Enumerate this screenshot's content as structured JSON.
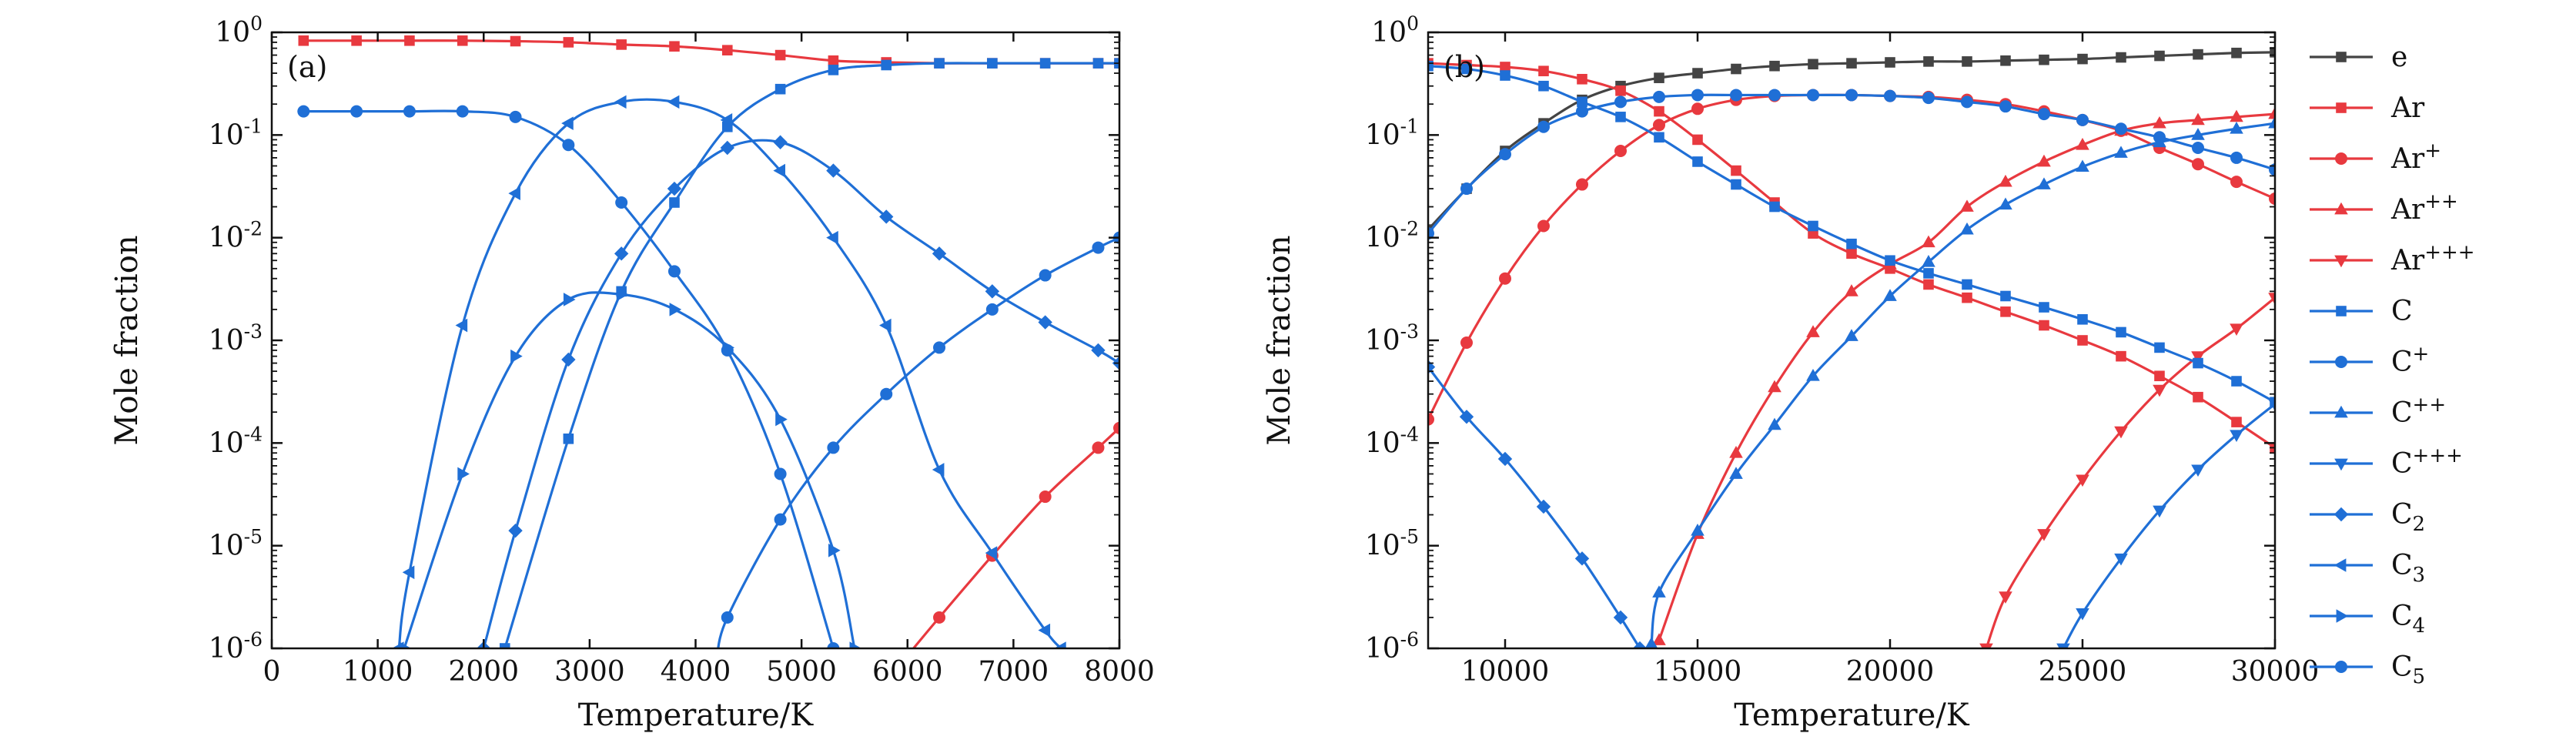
{
  "figure": {
    "ylabel": "Mole fraction",
    "xlabel": "Temperature/K"
  },
  "legend": [
    {
      "key": "e",
      "label": "e",
      "color": "#444444",
      "marker": "square"
    },
    {
      "key": "Ar",
      "label": "Ar",
      "color": "#e8393f",
      "marker": "square"
    },
    {
      "key": "Ar+",
      "label": "Ar+",
      "color": "#e8393f",
      "marker": "circle"
    },
    {
      "key": "Ar++",
      "label": "Ar++",
      "color": "#e8393f",
      "marker": "triangle-up"
    },
    {
      "key": "Ar+++",
      "label": "Ar+++",
      "color": "#e8393f",
      "marker": "triangle-down"
    },
    {
      "key": "C",
      "label": "C",
      "color": "#1f6fd6",
      "marker": "square"
    },
    {
      "key": "C+",
      "label": "C+",
      "color": "#1f6fd6",
      "marker": "circle"
    },
    {
      "key": "C++",
      "label": "C++",
      "color": "#1f6fd6",
      "marker": "triangle-up"
    },
    {
      "key": "C+++",
      "label": "C+++",
      "color": "#1f6fd6",
      "marker": "triangle-down"
    },
    {
      "key": "C2",
      "label": "C2",
      "color": "#1f6fd6",
      "marker": "diamond"
    },
    {
      "key": "C3",
      "label": "C3",
      "color": "#1f6fd6",
      "marker": "triangle-left"
    },
    {
      "key": "C4",
      "label": "C4",
      "color": "#1f6fd6",
      "marker": "triangle-right"
    },
    {
      "key": "C5",
      "label": "C5",
      "color": "#1f6fd6",
      "marker": "circle"
    }
  ],
  "chart_data": [
    {
      "type": "line",
      "panel_label": "(a)",
      "xlabel": "Temperature/K",
      "ylabel": "Mole fraction",
      "yscale": "log",
      "xlim": [
        0,
        8000
      ],
      "ylim": [
        1e-06,
        1
      ],
      "xticks": [
        0,
        1000,
        2000,
        3000,
        4000,
        5000,
        6000,
        7000,
        8000
      ],
      "series": [
        {
          "name": "Ar",
          "x": [
            300,
            800,
            1300,
            1800,
            2300,
            2800,
            3300,
            3800,
            4300,
            4800,
            5300,
            5800,
            6300,
            6800,
            7300,
            7800,
            8000
          ],
          "y": [
            0.83,
            0.83,
            0.83,
            0.83,
            0.82,
            0.8,
            0.76,
            0.73,
            0.67,
            0.6,
            0.53,
            0.51,
            0.5,
            0.5,
            0.5,
            0.5,
            0.5
          ]
        },
        {
          "name": "Ar+",
          "x": [
            6000,
            6300,
            6800,
            7300,
            7800,
            8000
          ],
          "y": [
            8.5e-07,
            2e-06,
            8e-06,
            3e-05,
            9e-05,
            0.00014
          ]
        },
        {
          "name": "C",
          "x": [
            2200,
            2800,
            3300,
            3800,
            4300,
            4800,
            5300,
            5800,
            6300,
            6800,
            7300,
            7800,
            8000
          ],
          "y": [
            1e-06,
            0.00011,
            0.003,
            0.022,
            0.12,
            0.28,
            0.43,
            0.48,
            0.5,
            0.5,
            0.5,
            0.5,
            0.5
          ]
        },
        {
          "name": "C+",
          "x": [
            4200,
            4300,
            4800,
            5300,
            5800,
            6300,
            6800,
            7300,
            7800,
            8000
          ],
          "y": [
            8e-07,
            2e-06,
            1.8e-05,
            9e-05,
            0.0003,
            0.00085,
            0.002,
            0.0043,
            0.008,
            0.01
          ]
        },
        {
          "name": "C2",
          "x": [
            2000,
            2300,
            2800,
            3300,
            3800,
            4300,
            4800,
            5300,
            5800,
            6300,
            6800,
            7300,
            7800,
            8000
          ],
          "y": [
            1e-06,
            1.4e-05,
            0.00065,
            0.007,
            0.03,
            0.075,
            0.085,
            0.045,
            0.016,
            0.007,
            0.003,
            0.0015,
            0.0008,
            0.0006
          ]
        },
        {
          "name": "C3",
          "x": [
            1200,
            1300,
            1800,
            2300,
            2800,
            3300,
            3800,
            4300,
            4800,
            5300,
            5800,
            6300,
            6800,
            7300,
            7450
          ],
          "y": [
            1e-06,
            5.5e-06,
            0.0014,
            0.027,
            0.13,
            0.21,
            0.21,
            0.14,
            0.045,
            0.01,
            0.0014,
            5.5e-05,
            8.5e-06,
            1.5e-06,
            1e-06
          ]
        },
        {
          "name": "C4",
          "x": [
            1250,
            1800,
            2300,
            2800,
            3300,
            3800,
            4300,
            4800,
            5300,
            5500
          ],
          "y": [
            1e-06,
            5e-05,
            0.0007,
            0.0025,
            0.0028,
            0.002,
            0.00085,
            0.00017,
            9e-06,
            1e-06
          ]
        },
        {
          "name": "C5",
          "x": [
            300,
            800,
            1300,
            1800,
            2300,
            2800,
            3300,
            3800,
            4300,
            4800,
            5300
          ],
          "y": [
            0.17,
            0.17,
            0.17,
            0.17,
            0.15,
            0.08,
            0.022,
            0.0047,
            0.0008,
            5e-05,
            1e-06
          ]
        }
      ]
    },
    {
      "type": "line",
      "panel_label": "(b)",
      "xlabel": "Temperature/K",
      "ylabel": "Mole fraction",
      "yscale": "log",
      "xlim": [
        8000,
        30000
      ],
      "ylim": [
        1e-06,
        1
      ],
      "xticks": [
        10000,
        15000,
        20000,
        25000,
        30000
      ],
      "series": [
        {
          "name": "e",
          "x": [
            8000,
            9000,
            10000,
            11000,
            12000,
            13000,
            14000,
            15000,
            16000,
            17000,
            18000,
            19000,
            20000,
            21000,
            22000,
            23000,
            24000,
            25000,
            26000,
            27000,
            28000,
            29000,
            30000
          ],
          "y": [
            0.012,
            0.03,
            0.07,
            0.13,
            0.22,
            0.3,
            0.36,
            0.4,
            0.44,
            0.47,
            0.49,
            0.5,
            0.51,
            0.52,
            0.52,
            0.53,
            0.54,
            0.55,
            0.57,
            0.59,
            0.61,
            0.63,
            0.64
          ]
        },
        {
          "name": "Ar",
          "x": [
            8000,
            9000,
            10000,
            11000,
            12000,
            13000,
            14000,
            15000,
            16000,
            17000,
            18000,
            19000,
            20000,
            21000,
            22000,
            23000,
            24000,
            25000,
            26000,
            27000,
            28000,
            29000,
            30000
          ],
          "y": [
            0.5,
            0.48,
            0.46,
            0.42,
            0.35,
            0.27,
            0.17,
            0.09,
            0.045,
            0.022,
            0.011,
            0.007,
            0.005,
            0.0035,
            0.0026,
            0.0019,
            0.0014,
            0.001,
            0.0007,
            0.00045,
            0.00028,
            0.00016,
            9e-05
          ]
        },
        {
          "name": "Ar+",
          "x": [
            8000,
            9000,
            10000,
            11000,
            12000,
            13000,
            14000,
            15000,
            16000,
            17000,
            18000,
            19000,
            20000,
            21000,
            22000,
            23000,
            24000,
            25000,
            26000,
            27000,
            28000,
            29000,
            30000
          ],
          "y": [
            0.00017,
            0.00095,
            0.004,
            0.013,
            0.033,
            0.07,
            0.125,
            0.18,
            0.22,
            0.24,
            0.245,
            0.245,
            0.24,
            0.235,
            0.22,
            0.2,
            0.17,
            0.14,
            0.11,
            0.075,
            0.052,
            0.035,
            0.024
          ]
        },
        {
          "name": "Ar++",
          "x": [
            14000,
            15000,
            16000,
            17000,
            18000,
            19000,
            20000,
            21000,
            22000,
            23000,
            24000,
            25000,
            26000,
            27000,
            28000,
            29000,
            30000
          ],
          "y": [
            1.2e-06,
            1.3e-05,
            8e-05,
            0.00035,
            0.0012,
            0.003,
            0.0055,
            0.009,
            0.02,
            0.035,
            0.055,
            0.08,
            0.11,
            0.13,
            0.14,
            0.15,
            0.16
          ]
        },
        {
          "name": "Ar+++",
          "x": [
            22500,
            23000,
            24000,
            25000,
            26000,
            27000,
            28000,
            29000,
            30000
          ],
          "y": [
            1e-06,
            3.2e-06,
            1.3e-05,
            4.4e-05,
            0.00013,
            0.00033,
            0.0007,
            0.0013,
            0.0026
          ]
        },
        {
          "name": "C",
          "x": [
            8000,
            9000,
            10000,
            11000,
            12000,
            13000,
            14000,
            15000,
            16000,
            17000,
            18000,
            19000,
            20000,
            21000,
            22000,
            23000,
            24000,
            25000,
            26000,
            27000,
            28000,
            29000,
            30000
          ],
          "y": [
            0.47,
            0.44,
            0.38,
            0.3,
            0.21,
            0.15,
            0.095,
            0.055,
            0.033,
            0.02,
            0.013,
            0.0087,
            0.006,
            0.0045,
            0.0035,
            0.0027,
            0.0021,
            0.0016,
            0.0012,
            0.00085,
            0.0006,
            0.0004,
            0.00025
          ]
        },
        {
          "name": "C+",
          "x": [
            8000,
            9000,
            10000,
            11000,
            12000,
            13000,
            14000,
            15000,
            16000,
            17000,
            18000,
            19000,
            20000,
            21000,
            22000,
            23000,
            24000,
            25000,
            26000,
            27000,
            28000,
            29000,
            30000
          ],
          "y": [
            0.011,
            0.03,
            0.065,
            0.12,
            0.17,
            0.21,
            0.235,
            0.245,
            0.245,
            0.245,
            0.245,
            0.245,
            0.24,
            0.23,
            0.21,
            0.19,
            0.16,
            0.14,
            0.115,
            0.095,
            0.075,
            0.06,
            0.046
          ]
        },
        {
          "name": "C++",
          "x": [
            13800,
            14000,
            15000,
            16000,
            17000,
            18000,
            19000,
            20000,
            21000,
            22000,
            23000,
            24000,
            25000,
            26000,
            27000,
            28000,
            29000,
            30000
          ],
          "y": [
            1.1e-06,
            3.5e-06,
            1.4e-05,
            5e-05,
            0.00015,
            0.00045,
            0.0011,
            0.0027,
            0.0058,
            0.012,
            0.021,
            0.033,
            0.049,
            0.067,
            0.085,
            0.1,
            0.115,
            0.13
          ]
        },
        {
          "name": "C+++",
          "x": [
            24500,
            25000,
            26000,
            27000,
            28000,
            29000,
            30000
          ],
          "y": [
            1e-06,
            2.2e-06,
            7.5e-06,
            2.2e-05,
            5.5e-05,
            0.00012,
            0.00024
          ]
        },
        {
          "name": "C2",
          "x": [
            8000,
            9000,
            10000,
            11000,
            12000,
            13000,
            13500
          ],
          "y": [
            0.00055,
            0.00018,
            7e-05,
            2.4e-05,
            7.5e-06,
            2e-06,
            1e-06
          ]
        }
      ]
    }
  ]
}
